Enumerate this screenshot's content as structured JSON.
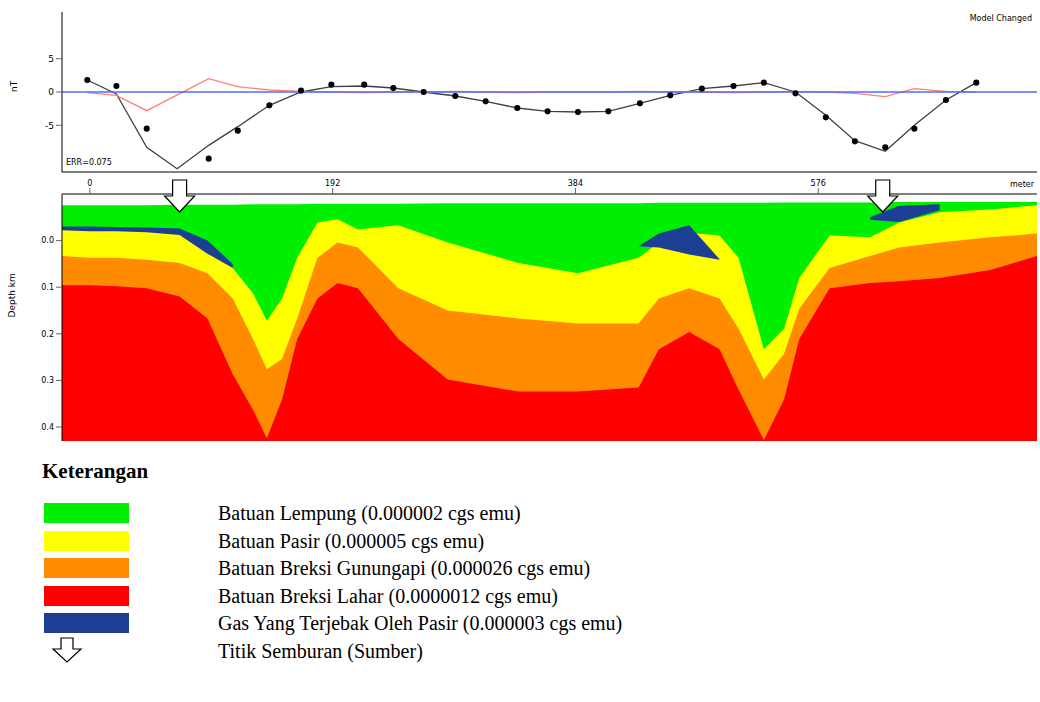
{
  "chart_data": [
    {
      "type": "line",
      "ylabel": "nT",
      "annotations": [
        "ERR=0.075",
        "Model Changed"
      ],
      "xlim": [
        -22,
        749
      ],
      "ylim": [
        -12,
        12
      ],
      "yticks": [
        -5,
        0,
        5
      ],
      "tick_labels": "y",
      "series": [
        {
          "type": "scatter",
          "marker": "circle",
          "color": "#000000",
          "x": [
            -2,
            21,
            45,
            94,
            117,
            142,
            167,
            191,
            217,
            240,
            264,
            289,
            313,
            338,
            362,
            386,
            410,
            435,
            459,
            484,
            509,
            533,
            558,
            582,
            605,
            629,
            652,
            677,
            701
          ],
          "values": [
            1.8,
            0.9,
            -5.5,
            -10.0,
            -5.8,
            -2.0,
            0.2,
            1.1,
            1.1,
            0.6,
            0.0,
            -0.6,
            -1.4,
            -2.4,
            -2.9,
            -3.0,
            -2.9,
            -1.7,
            -0.5,
            0.5,
            0.9,
            1.4,
            -0.2,
            -3.8,
            -7.4,
            -8.3,
            -5.5,
            -1.2,
            1.4
          ]
        },
        {
          "type": "line",
          "color": "#404040",
          "x": [
            -2,
            21,
            45,
            69,
            94,
            117,
            142,
            167,
            191,
            217,
            240,
            264,
            289,
            313,
            338,
            362,
            386,
            410,
            435,
            459,
            484,
            509,
            533,
            558,
            582,
            605,
            629,
            652,
            677,
            701
          ],
          "values": [
            1.8,
            -0.3,
            -8.3,
            -11.5,
            -8.0,
            -5.2,
            -2.0,
            0.0,
            0.8,
            0.9,
            0.6,
            0.0,
            -0.6,
            -1.4,
            -2.4,
            -2.9,
            -3.0,
            -2.9,
            -1.7,
            -0.5,
            0.5,
            0.9,
            1.4,
            0.0,
            -3.5,
            -7.3,
            -8.9,
            -5.0,
            -1.2,
            1.4
          ]
        },
        {
          "type": "line",
          "color": "#ff7f7f",
          "x": [
            -2,
            21,
            45,
            94,
            117,
            142,
            167,
            191,
            217,
            240,
            264,
            289,
            313,
            338,
            362,
            386,
            410,
            435,
            459,
            484,
            509,
            533,
            558,
            582,
            605,
            629,
            652,
            677,
            701
          ],
          "values": [
            -0.1,
            -0.5,
            -2.8,
            2.0,
            0.8,
            0.3,
            0.1,
            0.0,
            -0.1,
            0.0,
            0.0,
            0.1,
            0.0,
            -0.1,
            0.0,
            0.0,
            0.0,
            0.1,
            0.0,
            0.0,
            -0.1,
            0.0,
            0.1,
            0.0,
            -0.2,
            -0.7,
            0.5,
            0.1,
            0.0
          ]
        },
        {
          "type": "line",
          "color": "#4a6cff",
          "x": [
            -22,
            749
          ],
          "values": [
            0,
            0
          ]
        }
      ]
    },
    {
      "type": "area",
      "xlabel": "meter",
      "ylabel": "Depth km",
      "legend_title": "Keterangan",
      "legend": "bottom",
      "xlim": [
        -22,
        749
      ],
      "xticks": [
        0,
        192,
        384,
        576
      ],
      "ylim": [
        -0.1,
        0.43
      ],
      "yticks": [
        {
          "value": 0,
          "label": "0.0"
        },
        0.1,
        0.2,
        0.3,
        0.4
      ],
      "x": [
        -22,
        0,
        21,
        45,
        71,
        93,
        113,
        129,
        140,
        152,
        164,
        180,
        196,
        212,
        244,
        283,
        339,
        386,
        434,
        450,
        474,
        498,
        513,
        533,
        549,
        561,
        585,
        617,
        640,
        672,
        712,
        749
      ],
      "layers": [
        {
          "name": "Batuan Lempung (0.000002 cgs emu)",
          "color": "#00ee00",
          "top": [
            -0.076,
            -0.076,
            -0.076,
            -0.076,
            -0.077,
            -0.077,
            -0.077,
            -0.078,
            -0.078,
            -0.078,
            -0.078,
            -0.079,
            -0.079,
            -0.079,
            -0.079,
            -0.08,
            -0.08,
            -0.08,
            -0.08,
            -0.081,
            -0.081,
            -0.081,
            -0.081,
            -0.081,
            -0.082,
            -0.082,
            -0.082,
            -0.082,
            -0.083,
            -0.083,
            -0.083,
            -0.083
          ]
        },
        {
          "name": "Batuan Pasir (0.000005 cgs emu)",
          "color": "#ffff00",
          "top": [
            -0.024,
            -0.022,
            -0.022,
            -0.02,
            -0.015,
            0.015,
            0.059,
            0.113,
            0.172,
            0.124,
            0.037,
            -0.039,
            -0.046,
            -0.024,
            -0.033,
            0.004,
            0.048,
            0.07,
            0.037,
            0.004,
            -0.017,
            -0.011,
            0.037,
            0.233,
            0.189,
            0.08,
            -0.011,
            -0.007,
            -0.039,
            -0.061,
            -0.067,
            -0.076
          ]
        },
        {
          "name": "Batuan Breksi Gunungapi (0.000026 cgs emu)",
          "color": "#ff8c00",
          "top": [
            0.033,
            0.037,
            0.037,
            0.041,
            0.048,
            0.07,
            0.124,
            0.211,
            0.276,
            0.254,
            0.167,
            0.037,
            0.004,
            0.015,
            0.102,
            0.15,
            0.167,
            0.178,
            0.178,
            0.124,
            0.102,
            0.124,
            0.189,
            0.298,
            0.243,
            0.146,
            0.059,
            0.033,
            0.015,
            0.004,
            -0.007,
            -0.015
          ]
        },
        {
          "name": "Batuan Breksi Lahar (0.0000012 cgs emu)",
          "color": "#ff0000",
          "top": [
            0.096,
            0.096,
            0.098,
            0.102,
            0.12,
            0.167,
            0.287,
            0.363,
            0.424,
            0.341,
            0.211,
            0.124,
            0.091,
            0.102,
            0.211,
            0.298,
            0.324,
            0.324,
            0.315,
            0.233,
            0.196,
            0.233,
            0.32,
            0.428,
            0.341,
            0.211,
            0.102,
            0.091,
            0.087,
            0.08,
            0.063,
            0.033
          ]
        }
      ],
      "gas": {
        "name": "Gas Yang Terjebak Oleh Pasir (0.000003 cgs emu)",
        "color": "#1c3f94",
        "bodies": [
          {
            "top": [
              -0.03,
              -0.03,
              -0.029,
              -0.028,
              -0.026,
              0.0,
              0.05,
              null,
              null,
              null,
              null,
              null,
              null,
              null,
              null,
              null,
              null,
              null,
              null,
              null,
              null,
              null,
              null,
              null,
              null,
              null,
              null,
              null,
              null,
              null,
              null,
              null
            ],
            "bottom": [
              -0.022,
              -0.02,
              -0.02,
              -0.018,
              -0.012,
              0.028,
              0.059,
              null,
              null,
              null,
              null,
              null,
              null,
              null,
              null,
              null,
              null,
              null,
              null,
              null,
              null,
              null,
              null,
              null,
              null,
              null,
              null,
              null,
              null,
              null,
              null,
              null
            ]
          },
          {
            "top": [
              null,
              null,
              null,
              null,
              null,
              null,
              null,
              null,
              null,
              null,
              null,
              null,
              null,
              null,
              null,
              null,
              null,
              null,
              0.012,
              -0.015,
              -0.033,
              0.04,
              null,
              null,
              null,
              null,
              null,
              null,
              null,
              null,
              null,
              null
            ],
            "bottom": [
              null,
              null,
              null,
              null,
              null,
              null,
              null,
              null,
              null,
              null,
              null,
              null,
              null,
              null,
              null,
              null,
              null,
              null,
              0.012,
              0.015,
              0.03,
              0.041,
              null,
              null,
              null,
              null,
              null,
              null,
              null,
              null,
              null,
              null
            ]
          },
          {
            "top": [
              null,
              null,
              null,
              null,
              null,
              null,
              null,
              null,
              null,
              null,
              null,
              null,
              null,
              null,
              null,
              null,
              null,
              null,
              null,
              null,
              null,
              null,
              null,
              null,
              null,
              null,
              null,
              -0.05,
              -0.075,
              -0.078,
              null,
              null
            ],
            "bottom": [
              null,
              null,
              null,
              null,
              null,
              null,
              null,
              null,
              null,
              null,
              null,
              null,
              null,
              null,
              null,
              null,
              null,
              null,
              null,
              null,
              null,
              null,
              null,
              null,
              null,
              null,
              null,
              -0.045,
              -0.04,
              -0.065,
              null,
              null
            ]
          }
        ]
      },
      "source": {
        "name": "Titik Semburan (Sumber)",
        "x": [
          71,
          627
        ]
      }
    }
  ]
}
